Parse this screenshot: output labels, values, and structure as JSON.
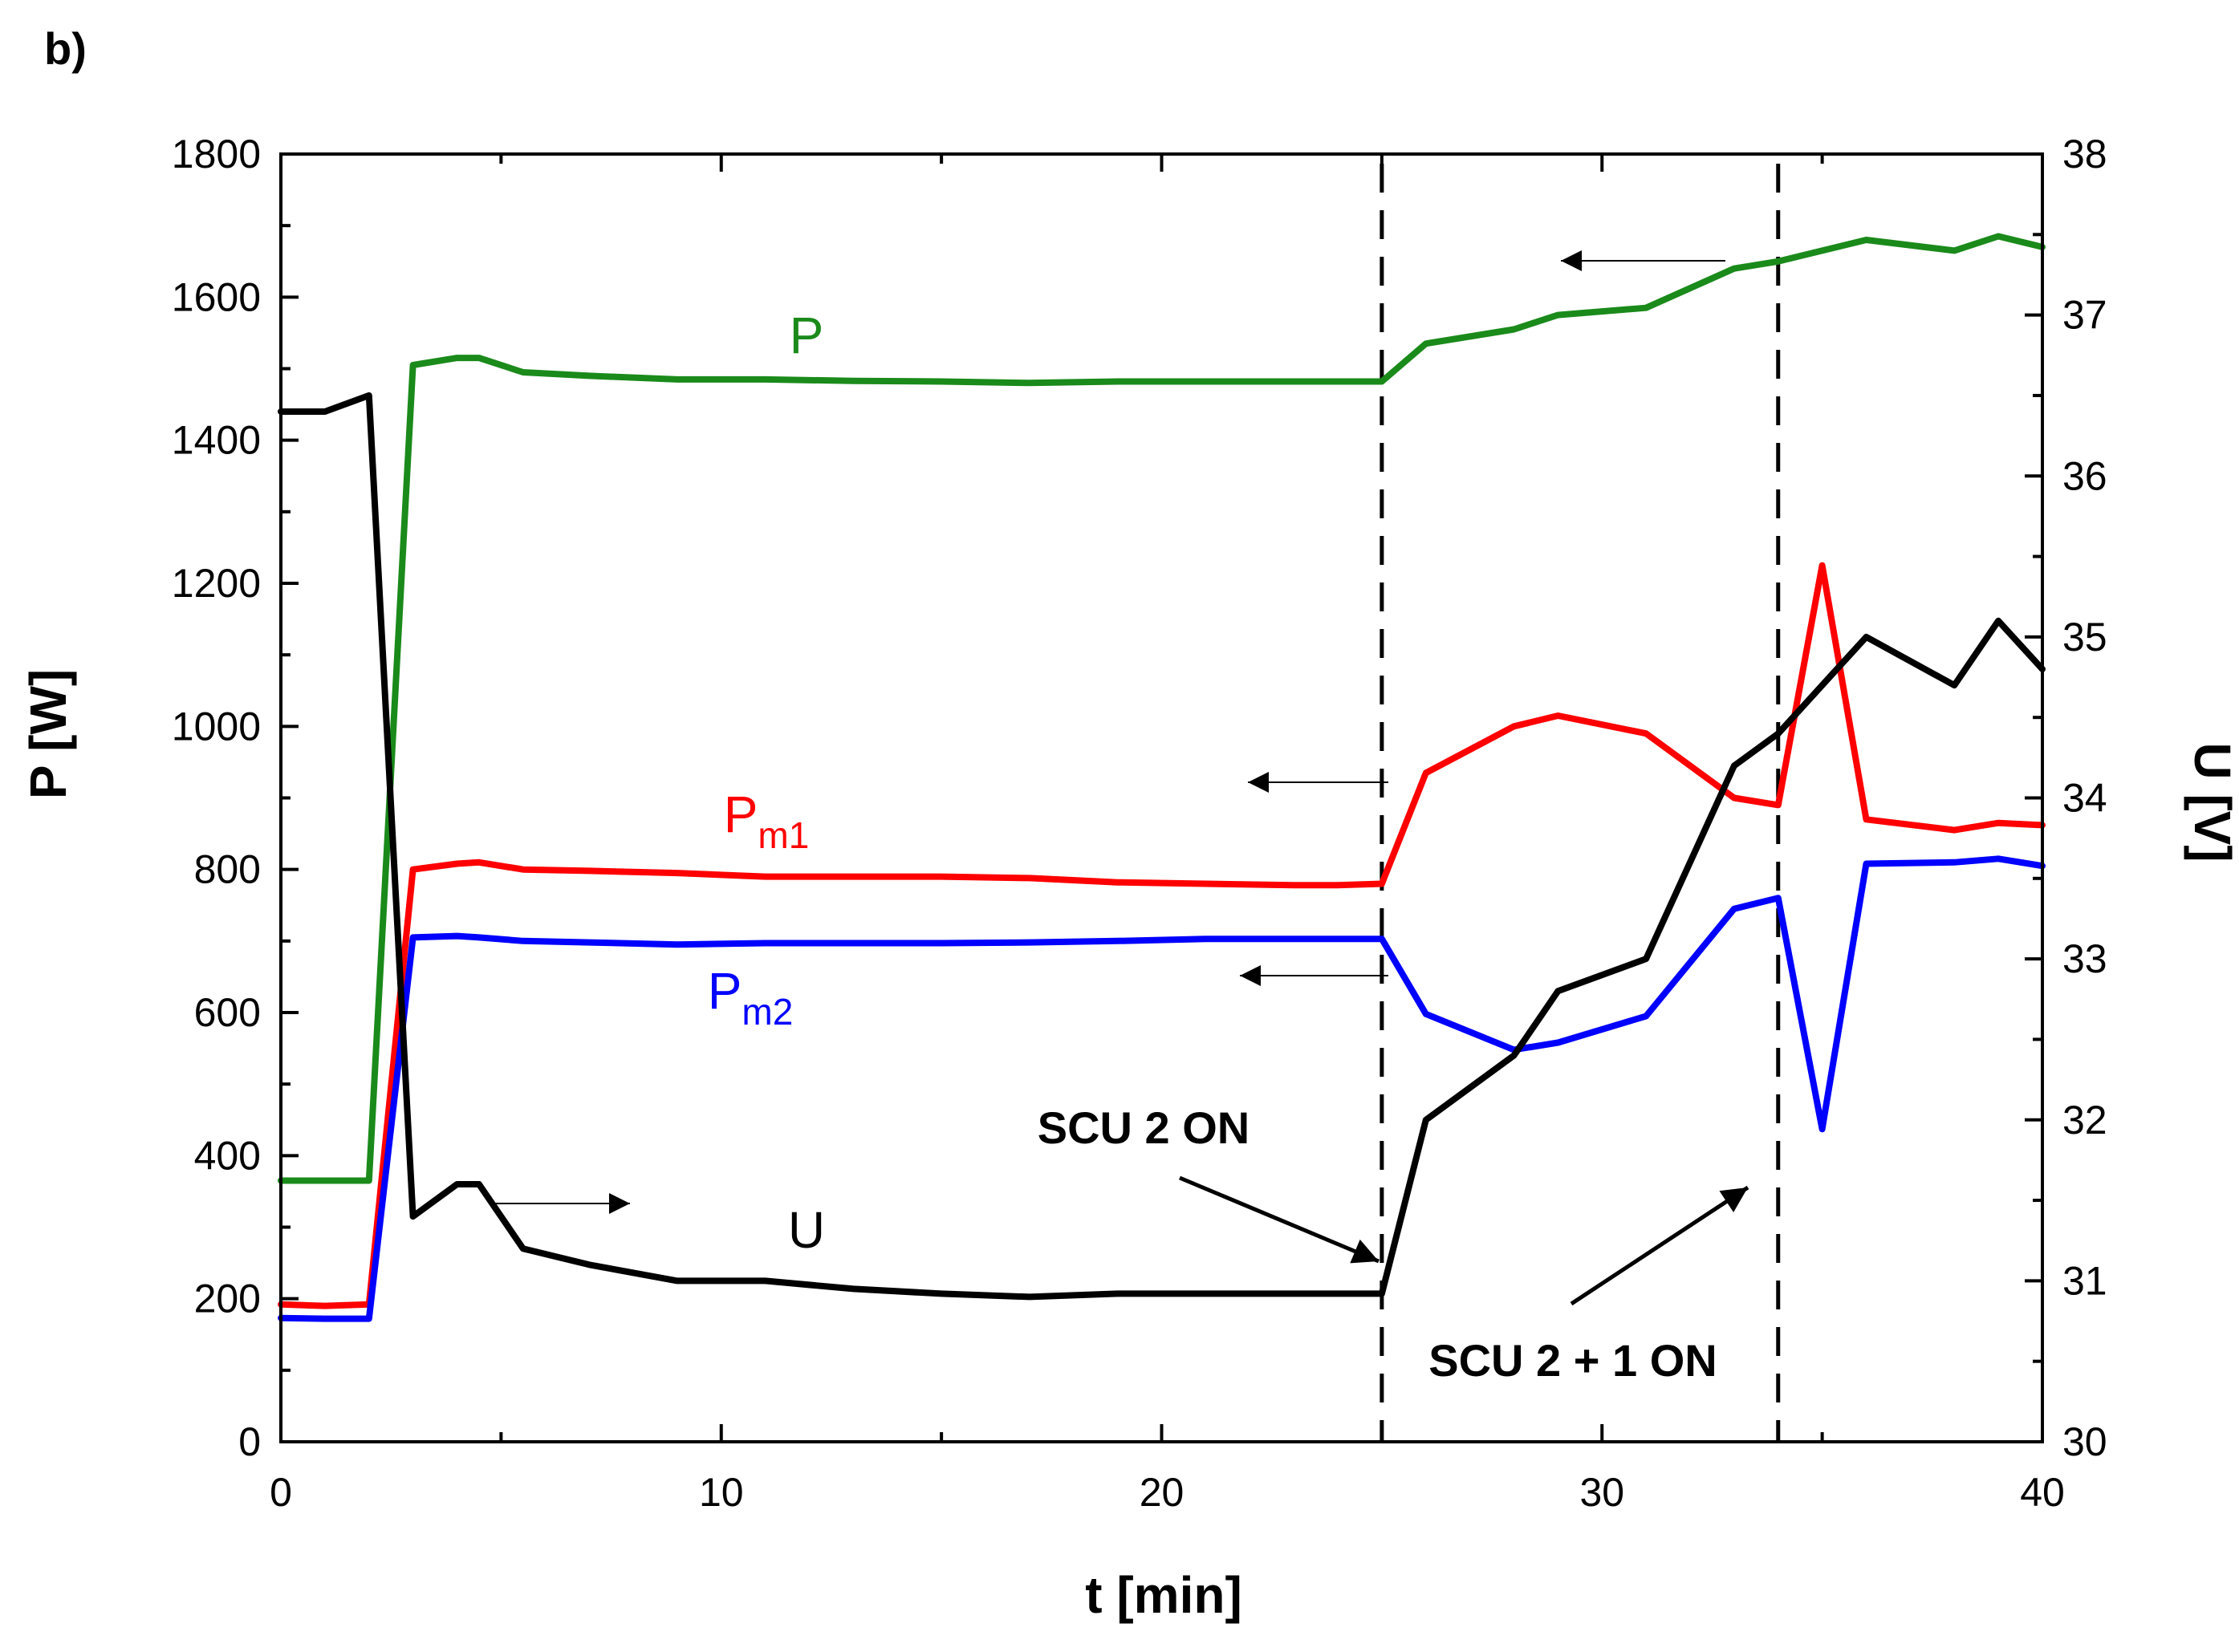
{
  "panel_label": "b)",
  "chart_data": {
    "type": "line",
    "title": "",
    "xlabel": "t [min]",
    "ylabel_left": "P [W]",
    "ylabel_right": "U [V]",
    "xlim": [
      0,
      40
    ],
    "ylim_left": [
      0,
      1800
    ],
    "ylim_right": [
      30,
      38
    ],
    "xticks": [
      0,
      10,
      20,
      30,
      40
    ],
    "yticks_left": [
      0,
      200,
      400,
      600,
      800,
      1000,
      1200,
      1400,
      1600,
      1800
    ],
    "yticks_right": [
      30,
      31,
      32,
      33,
      34,
      35,
      36,
      37,
      38
    ],
    "grid": false,
    "series": [
      {
        "name": "P",
        "label_main": "P",
        "label_sub": "",
        "axis": "left",
        "color": "#1a8a1a",
        "x": [
          0,
          2,
          3,
          4,
          4.5,
          5.5,
          7,
          9,
          11,
          13,
          15,
          17,
          19,
          21,
          23,
          25,
          26,
          28,
          29,
          31,
          33,
          34,
          35,
          36,
          38,
          39,
          40
        ],
        "y": [
          365,
          365,
          1505,
          1515,
          1515,
          1495,
          1490,
          1485,
          1485,
          1483,
          1482,
          1480,
          1482,
          1482,
          1482,
          1482,
          1535,
          1555,
          1575,
          1585,
          1640,
          1650,
          1665,
          1680,
          1665,
          1685,
          1670
        ]
      },
      {
        "name": "Pm1",
        "label_main": "P",
        "label_sub": "m1",
        "axis": "left",
        "color": "#ff0000",
        "x": [
          0,
          1,
          2,
          3,
          4,
          4.5,
          5.5,
          7,
          9,
          11,
          13,
          15,
          17,
          19,
          21,
          23,
          24,
          25,
          26,
          28,
          29,
          31,
          33,
          34,
          35,
          36,
          38,
          39,
          40
        ],
        "y": [
          192,
          190,
          192,
          800,
          808,
          810,
          800,
          798,
          795,
          790,
          790,
          790,
          788,
          782,
          780,
          778,
          778,
          780,
          935,
          1000,
          1015,
          990,
          900,
          890,
          1225,
          870,
          855,
          865,
          862
        ]
      },
      {
        "name": "Pm2",
        "label_main": "P",
        "label_sub": "m2",
        "axis": "left",
        "color": "#0000ff",
        "x": [
          0,
          1,
          2,
          3,
          4,
          4.5,
          5.5,
          7,
          9,
          11,
          13,
          15,
          17,
          19,
          21,
          23,
          25,
          26,
          28,
          29,
          31,
          33,
          34,
          35,
          36,
          38,
          39,
          40
        ],
        "y": [
          173,
          172,
          172,
          705,
          707,
          705,
          700,
          698,
          695,
          697,
          697,
          697,
          698,
          700,
          703,
          703,
          703,
          598,
          548,
          558,
          595,
          745,
          760,
          437,
          808,
          810,
          815,
          805
        ]
      },
      {
        "name": "U",
        "label_main": "U",
        "label_sub": "",
        "axis": "right",
        "color": "#000000",
        "x": [
          0,
          1,
          2,
          3,
          4,
          4.5,
          5.5,
          7,
          9,
          11,
          13,
          15,
          17,
          19,
          21,
          23,
          25,
          26,
          28,
          29,
          31,
          33,
          34,
          35,
          36,
          38,
          39,
          40
        ],
        "y": [
          36.4,
          36.4,
          36.5,
          31.4,
          31.6,
          31.6,
          31.2,
          31.1,
          31.0,
          31.0,
          30.95,
          30.92,
          30.9,
          30.92,
          30.92,
          30.92,
          30.92,
          32.0,
          32.4,
          32.8,
          33.0,
          34.2,
          34.4,
          34.7,
          35.0,
          34.7,
          35.1,
          34.8
        ]
      }
    ],
    "vlines": [
      25,
      34
    ],
    "annotations": [
      {
        "text": "SCU 2 ON"
      },
      {
        "text": "SCU 2 + 1 ON"
      }
    ]
  }
}
